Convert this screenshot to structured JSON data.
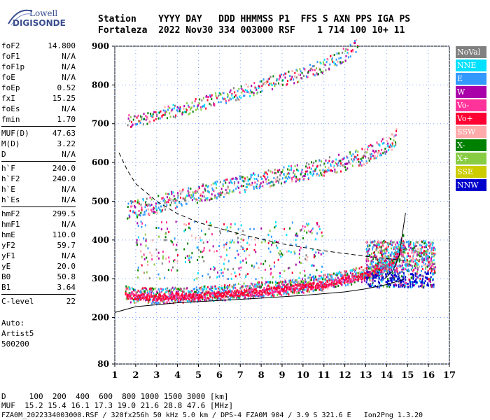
{
  "logo": {
    "line1": "Lowell",
    "line2": "DIGISONDE"
  },
  "header": {
    "row1": "Station    YYYY DAY   DDD HHMMSS P1  FFS S AXN PPS IGA PS",
    "row2": "Fortaleza  2022 Nov30 334 003000 RSF    1 714 100 10+ 11"
  },
  "params_groups": [
    [
      {
        "k": "foF2",
        "v": "14.800"
      },
      {
        "k": "foF1",
        "v": "N/A"
      },
      {
        "k": "foF1p",
        "v": "N/A"
      },
      {
        "k": "foE",
        "v": "N/A"
      },
      {
        "k": "foEp",
        "v": "0.52"
      },
      {
        "k": "fxI",
        "v": "15.25"
      },
      {
        "k": "foEs",
        "v": "N/A"
      },
      {
        "k": "fmin",
        "v": "1.70"
      }
    ],
    [
      {
        "k": "MUF(D)",
        "v": "47.63"
      },
      {
        "k": "M(D)",
        "v": "3.22"
      },
      {
        "k": "D",
        "v": "N/A"
      }
    ],
    [
      {
        "k": "h`F",
        "v": "240.0"
      },
      {
        "k": "h`F2",
        "v": "240.0"
      },
      {
        "k": "h`E",
        "v": "N/A"
      },
      {
        "k": "h`Es",
        "v": "N/A"
      }
    ],
    [
      {
        "k": "hmF2",
        "v": "299.5"
      },
      {
        "k": "hmF1",
        "v": "N/A"
      },
      {
        "k": "hmE",
        "v": "110.0"
      },
      {
        "k": "yF2",
        "v": "59.7"
      },
      {
        "k": "yF1",
        "v": "N/A"
      },
      {
        "k": "yE",
        "v": "20.0"
      },
      {
        "k": "B0",
        "v": "50.8"
      },
      {
        "k": "B1",
        "v": "3.64"
      }
    ],
    [
      {
        "k": "C-level",
        "v": "22"
      }
    ]
  ],
  "auto": {
    "line1": "Auto:",
    "line2": "Artist5",
    "line3": "500200"
  },
  "legend": [
    {
      "label": "NoVal",
      "color": "#808080"
    },
    {
      "label": "NNE",
      "color": "#00e0ff"
    },
    {
      "label": "E",
      "color": "#3399ff"
    },
    {
      "label": "W",
      "color": "#aa00aa"
    },
    {
      "label": "Vo-",
      "color": "#ff3399"
    },
    {
      "label": "Vo+",
      "color": "#ff0033"
    },
    {
      "label": "SSW",
      "color": "#ffaaaa"
    },
    {
      "label": "X-",
      "color": "#008000"
    },
    {
      "label": "X+",
      "color": "#88cc44"
    },
    {
      "label": "SSE",
      "color": "#cccc00"
    },
    {
      "label": "NNW",
      "color": "#0000cc"
    }
  ],
  "chart_data": {
    "type": "scatter",
    "xlim": [
      1,
      17
    ],
    "ylim": [
      80,
      900
    ],
    "x_ticks": [
      "1",
      "2",
      "3",
      "4",
      "5",
      "6",
      "7",
      "8",
      "9",
      "10",
      "11",
      "12",
      "13",
      "14",
      "15",
      "16",
      "17"
    ],
    "y_ticks": [
      {
        "label": "900",
        "value": 900
      },
      {
        "label": "800",
        "value": 800
      },
      {
        "label": "700",
        "value": 700
      },
      {
        "label": "600",
        "value": 600
      },
      {
        "label": "500",
        "value": 500
      },
      {
        "label": "400",
        "value": 400
      },
      {
        "label": "300",
        "value": 300
      },
      {
        "label": "200",
        "value": 200
      },
      {
        "label": "80",
        "value": 80
      }
    ],
    "traces": {
      "o_trace_1": [
        [
          1.5,
          255
        ],
        [
          2,
          252
        ],
        [
          3,
          250
        ],
        [
          4,
          252
        ],
        [
          5,
          255
        ],
        [
          6,
          258
        ],
        [
          7,
          262
        ],
        [
          8,
          266
        ],
        [
          9,
          272
        ],
        [
          10,
          278
        ],
        [
          11,
          285
        ],
        [
          12,
          296
        ],
        [
          13,
          308
        ],
        [
          14,
          328
        ],
        [
          14.4,
          350
        ],
        [
          14.8,
          395
        ]
      ],
      "trace_2": [
        [
          1.6,
          470
        ],
        [
          3,
          485
        ],
        [
          4,
          500
        ],
        [
          6,
          525
        ],
        [
          8,
          548
        ],
        [
          10,
          570
        ],
        [
          12,
          595
        ],
        [
          13,
          612
        ],
        [
          14,
          638
        ],
        [
          14.5,
          665
        ]
      ],
      "trace_3": [
        [
          1.6,
          700
        ],
        [
          3,
          718
        ],
        [
          4,
          730
        ],
        [
          6,
          760
        ],
        [
          8,
          792
        ],
        [
          10,
          825
        ],
        [
          11,
          845
        ],
        [
          12,
          875
        ],
        [
          12.6,
          900
        ]
      ]
    },
    "profile_curve": [
      [
        1,
        213
      ],
      [
        2,
        228
      ],
      [
        4,
        238
      ],
      [
        6,
        244
      ],
      [
        8,
        250
      ],
      [
        10,
        257
      ],
      [
        12,
        266
      ],
      [
        13,
        274
      ],
      [
        14,
        285
      ],
      [
        14.8,
        298
      ]
    ],
    "profile_steep": [
      [
        13.9,
        300
      ],
      [
        14.3,
        320
      ],
      [
        14.6,
        360
      ],
      [
        14.9,
        470
      ]
    ],
    "dashed_curve": [
      [
        1.2,
        625
      ],
      [
        1.6,
        580
      ],
      [
        2,
        545
      ],
      [
        3,
        500
      ],
      [
        4,
        468
      ],
      [
        5,
        445
      ],
      [
        7,
        415
      ],
      [
        9,
        390
      ],
      [
        11,
        372
      ],
      [
        13,
        358
      ],
      [
        15,
        346
      ]
    ]
  },
  "footer": {
    "line1": "D     100  200  400  600  800 1000 1500 3000 [km]",
    "line2": "MUF  15.2 15.4 16.1 17.3 19.0 21.6 28.8 47.6 [MHz]",
    "line3": "FZA0M_2022334003000.RSF / 320fx256h 50 kHz 5.0 km / DPS-4 FZA0M 904 / 3.9 S 321.6 E   Ion2Png 1.3.20"
  }
}
